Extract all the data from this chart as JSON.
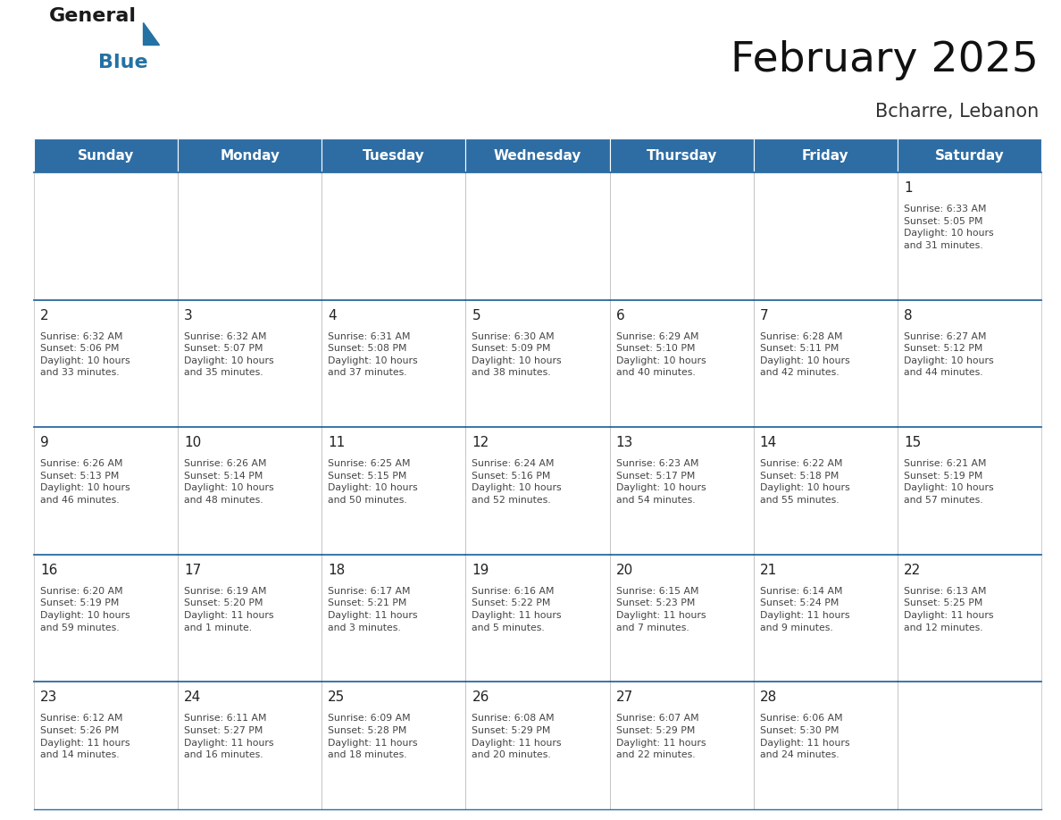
{
  "title": "February 2025",
  "subtitle": "Bcharre, Lebanon",
  "header_bg": "#2E6DA4",
  "header_text_color": "#FFFFFF",
  "border_color": "#2E6DA4",
  "cell_border_color": "#AAAAAA",
  "days_of_week": [
    "Sunday",
    "Monday",
    "Tuesday",
    "Wednesday",
    "Thursday",
    "Friday",
    "Saturday"
  ],
  "calendar_data": [
    [
      null,
      null,
      null,
      null,
      null,
      null,
      {
        "day": "1",
        "sunrise": "6:33 AM",
        "sunset": "5:05 PM",
        "daylight": "10 hours\nand 31 minutes."
      }
    ],
    [
      {
        "day": "2",
        "sunrise": "6:32 AM",
        "sunset": "5:06 PM",
        "daylight": "10 hours\nand 33 minutes."
      },
      {
        "day": "3",
        "sunrise": "6:32 AM",
        "sunset": "5:07 PM",
        "daylight": "10 hours\nand 35 minutes."
      },
      {
        "day": "4",
        "sunrise": "6:31 AM",
        "sunset": "5:08 PM",
        "daylight": "10 hours\nand 37 minutes."
      },
      {
        "day": "5",
        "sunrise": "6:30 AM",
        "sunset": "5:09 PM",
        "daylight": "10 hours\nand 38 minutes."
      },
      {
        "day": "6",
        "sunrise": "6:29 AM",
        "sunset": "5:10 PM",
        "daylight": "10 hours\nand 40 minutes."
      },
      {
        "day": "7",
        "sunrise": "6:28 AM",
        "sunset": "5:11 PM",
        "daylight": "10 hours\nand 42 minutes."
      },
      {
        "day": "8",
        "sunrise": "6:27 AM",
        "sunset": "5:12 PM",
        "daylight": "10 hours\nand 44 minutes."
      }
    ],
    [
      {
        "day": "9",
        "sunrise": "6:26 AM",
        "sunset": "5:13 PM",
        "daylight": "10 hours\nand 46 minutes."
      },
      {
        "day": "10",
        "sunrise": "6:26 AM",
        "sunset": "5:14 PM",
        "daylight": "10 hours\nand 48 minutes."
      },
      {
        "day": "11",
        "sunrise": "6:25 AM",
        "sunset": "5:15 PM",
        "daylight": "10 hours\nand 50 minutes."
      },
      {
        "day": "12",
        "sunrise": "6:24 AM",
        "sunset": "5:16 PM",
        "daylight": "10 hours\nand 52 minutes."
      },
      {
        "day": "13",
        "sunrise": "6:23 AM",
        "sunset": "5:17 PM",
        "daylight": "10 hours\nand 54 minutes."
      },
      {
        "day": "14",
        "sunrise": "6:22 AM",
        "sunset": "5:18 PM",
        "daylight": "10 hours\nand 55 minutes."
      },
      {
        "day": "15",
        "sunrise": "6:21 AM",
        "sunset": "5:19 PM",
        "daylight": "10 hours\nand 57 minutes."
      }
    ],
    [
      {
        "day": "16",
        "sunrise": "6:20 AM",
        "sunset": "5:19 PM",
        "daylight": "10 hours\nand 59 minutes."
      },
      {
        "day": "17",
        "sunrise": "6:19 AM",
        "sunset": "5:20 PM",
        "daylight": "11 hours\nand 1 minute."
      },
      {
        "day": "18",
        "sunrise": "6:17 AM",
        "sunset": "5:21 PM",
        "daylight": "11 hours\nand 3 minutes."
      },
      {
        "day": "19",
        "sunrise": "6:16 AM",
        "sunset": "5:22 PM",
        "daylight": "11 hours\nand 5 minutes."
      },
      {
        "day": "20",
        "sunrise": "6:15 AM",
        "sunset": "5:23 PM",
        "daylight": "11 hours\nand 7 minutes."
      },
      {
        "day": "21",
        "sunrise": "6:14 AM",
        "sunset": "5:24 PM",
        "daylight": "11 hours\nand 9 minutes."
      },
      {
        "day": "22",
        "sunrise": "6:13 AM",
        "sunset": "5:25 PM",
        "daylight": "11 hours\nand 12 minutes."
      }
    ],
    [
      {
        "day": "23",
        "sunrise": "6:12 AM",
        "sunset": "5:26 PM",
        "daylight": "11 hours\nand 14 minutes."
      },
      {
        "day": "24",
        "sunrise": "6:11 AM",
        "sunset": "5:27 PM",
        "daylight": "11 hours\nand 16 minutes."
      },
      {
        "day": "25",
        "sunrise": "6:09 AM",
        "sunset": "5:28 PM",
        "daylight": "11 hours\nand 18 minutes."
      },
      {
        "day": "26",
        "sunrise": "6:08 AM",
        "sunset": "5:29 PM",
        "daylight": "11 hours\nand 20 minutes."
      },
      {
        "day": "27",
        "sunrise": "6:07 AM",
        "sunset": "5:29 PM",
        "daylight": "11 hours\nand 22 minutes."
      },
      {
        "day": "28",
        "sunrise": "6:06 AM",
        "sunset": "5:30 PM",
        "daylight": "11 hours\nand 24 minutes."
      },
      null
    ]
  ],
  "title_fontsize": 34,
  "subtitle_fontsize": 15,
  "header_fontsize": 11,
  "day_num_fontsize": 11,
  "cell_text_fontsize": 7.8,
  "logo_general_color": "#1a1a1a",
  "logo_blue_color": "#2471A3",
  "logo_triangle_color": "#2471A3",
  "fig_width": 11.88,
  "fig_height": 9.18,
  "dpi": 100
}
